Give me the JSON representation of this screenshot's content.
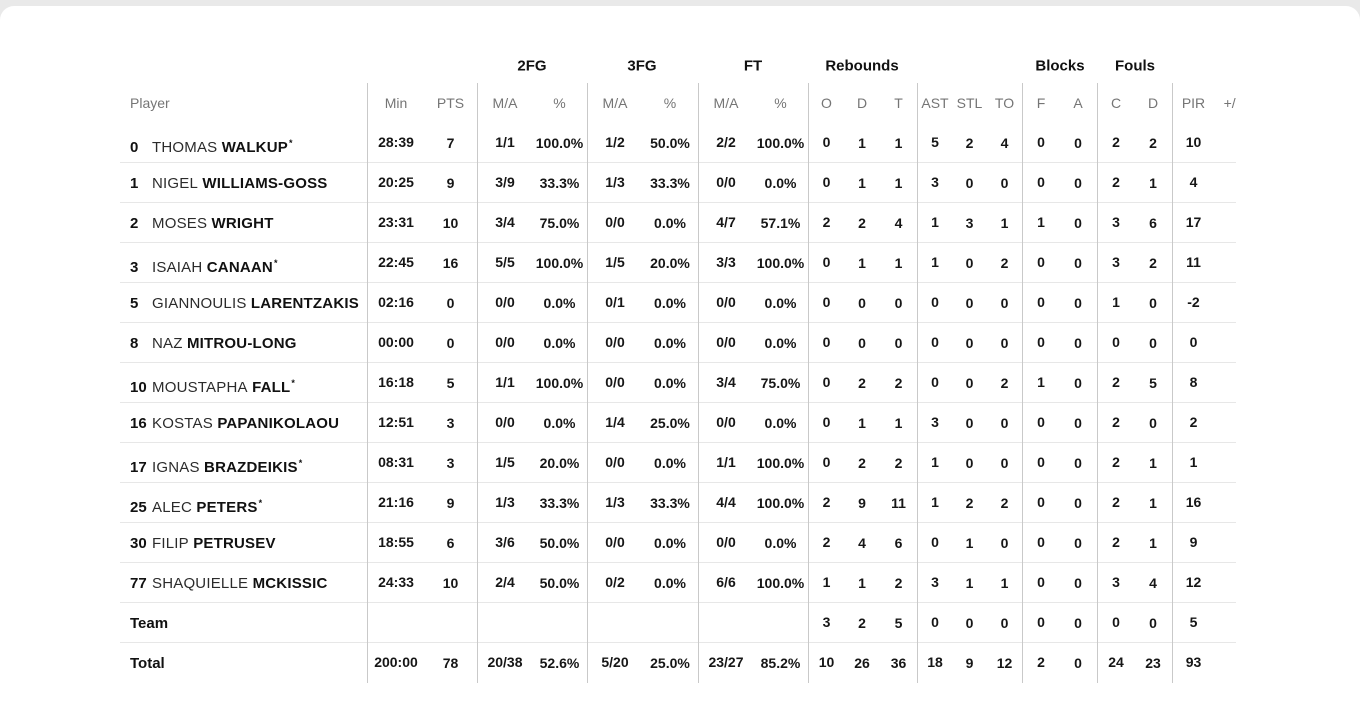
{
  "colors": {
    "page_bg": "#e9e9e9",
    "card_bg": "#ffffff",
    "header_text": "#757575",
    "text": "#161616",
    "vline": "#c9c9c9",
    "hline": "#e7e7e7"
  },
  "table": {
    "group_labels": [
      "2FG",
      "3FG",
      "FT",
      "Rebounds",
      "Blocks",
      "Fouls"
    ],
    "columns": [
      "Player",
      "Min",
      "PTS",
      "M/A",
      "%",
      "M/A",
      "%",
      "M/A",
      "%",
      "O",
      "D",
      "T",
      "AST",
      "STL",
      "TO",
      "F",
      "A",
      "C",
      "D",
      "PIR",
      "+/-"
    ],
    "starter_mark": "*",
    "rows": [
      {
        "num": "0",
        "first": "THOMAS",
        "last": "WALKUP",
        "starter": true,
        "cells": [
          "28:39",
          "7",
          "1/1",
          "100.0%",
          "1/2",
          "50.0%",
          "2/2",
          "100.0%",
          "0",
          "1",
          "1",
          "5",
          "2",
          "4",
          "0",
          "0",
          "2",
          "2",
          "10",
          ""
        ]
      },
      {
        "num": "1",
        "first": "NIGEL",
        "last": "WILLIAMS-GOSS",
        "starter": false,
        "cells": [
          "20:25",
          "9",
          "3/9",
          "33.3%",
          "1/3",
          "33.3%",
          "0/0",
          "0.0%",
          "0",
          "1",
          "1",
          "3",
          "0",
          "0",
          "0",
          "0",
          "2",
          "1",
          "4",
          ""
        ]
      },
      {
        "num": "2",
        "first": "MOSES",
        "last": "WRIGHT",
        "starter": false,
        "cells": [
          "23:31",
          "10",
          "3/4",
          "75.0%",
          "0/0",
          "0.0%",
          "4/7",
          "57.1%",
          "2",
          "2",
          "4",
          "1",
          "3",
          "1",
          "1",
          "0",
          "3",
          "6",
          "17",
          ""
        ]
      },
      {
        "num": "3",
        "first": "ISAIAH",
        "last": "CANAAN",
        "starter": true,
        "cells": [
          "22:45",
          "16",
          "5/5",
          "100.0%",
          "1/5",
          "20.0%",
          "3/3",
          "100.0%",
          "0",
          "1",
          "1",
          "1",
          "0",
          "2",
          "0",
          "0",
          "3",
          "2",
          "11",
          ""
        ]
      },
      {
        "num": "5",
        "first": "GIANNOULIS",
        "last": "LARENTZAKIS",
        "starter": false,
        "cells": [
          "02:16",
          "0",
          "0/0",
          "0.0%",
          "0/1",
          "0.0%",
          "0/0",
          "0.0%",
          "0",
          "0",
          "0",
          "0",
          "0",
          "0",
          "0",
          "0",
          "1",
          "0",
          "-2",
          ""
        ]
      },
      {
        "num": "8",
        "first": "NAZ",
        "last": "MITROU-LONG",
        "starter": false,
        "cells": [
          "00:00",
          "0",
          "0/0",
          "0.0%",
          "0/0",
          "0.0%",
          "0/0",
          "0.0%",
          "0",
          "0",
          "0",
          "0",
          "0",
          "0",
          "0",
          "0",
          "0",
          "0",
          "0",
          ""
        ]
      },
      {
        "num": "10",
        "first": "MOUSTAPHA",
        "last": "FALL",
        "starter": true,
        "cells": [
          "16:18",
          "5",
          "1/1",
          "100.0%",
          "0/0",
          "0.0%",
          "3/4",
          "75.0%",
          "0",
          "2",
          "2",
          "0",
          "0",
          "2",
          "1",
          "0",
          "2",
          "5",
          "8",
          ""
        ]
      },
      {
        "num": "16",
        "first": "KOSTAS",
        "last": "PAPANIKOLAOU",
        "starter": false,
        "cells": [
          "12:51",
          "3",
          "0/0",
          "0.0%",
          "1/4",
          "25.0%",
          "0/0",
          "0.0%",
          "0",
          "1",
          "1",
          "3",
          "0",
          "0",
          "0",
          "0",
          "2",
          "0",
          "2",
          ""
        ]
      },
      {
        "num": "17",
        "first": "IGNAS",
        "last": "BRAZDEIKIS",
        "starter": true,
        "cells": [
          "08:31",
          "3",
          "1/5",
          "20.0%",
          "0/0",
          "0.0%",
          "1/1",
          "100.0%",
          "0",
          "2",
          "2",
          "1",
          "0",
          "0",
          "0",
          "0",
          "2",
          "1",
          "1",
          ""
        ]
      },
      {
        "num": "25",
        "first": "ALEC",
        "last": "PETERS",
        "starter": true,
        "cells": [
          "21:16",
          "9",
          "1/3",
          "33.3%",
          "1/3",
          "33.3%",
          "4/4",
          "100.0%",
          "2",
          "9",
          "11",
          "1",
          "2",
          "2",
          "0",
          "0",
          "2",
          "1",
          "16",
          ""
        ]
      },
      {
        "num": "30",
        "first": "FILIP",
        "last": "PETRUSEV",
        "starter": false,
        "cells": [
          "18:55",
          "6",
          "3/6",
          "50.0%",
          "0/0",
          "0.0%",
          "0/0",
          "0.0%",
          "2",
          "4",
          "6",
          "0",
          "1",
          "0",
          "0",
          "0",
          "2",
          "1",
          "9",
          ""
        ]
      },
      {
        "num": "77",
        "first": "SHAQUIELLE",
        "last": "MCKISSIC",
        "starter": false,
        "cells": [
          "24:33",
          "10",
          "2/4",
          "50.0%",
          "0/2",
          "0.0%",
          "6/6",
          "100.0%",
          "1",
          "1",
          "2",
          "3",
          "1",
          "1",
          "0",
          "0",
          "3",
          "4",
          "12",
          ""
        ]
      },
      {
        "label": "Team",
        "cells": [
          "",
          "",
          "",
          "",
          "",
          "",
          "",
          "",
          "3",
          "2",
          "5",
          "0",
          "0",
          "0",
          "0",
          "0",
          "0",
          "0",
          "5",
          ""
        ]
      },
      {
        "label": "Total",
        "cells": [
          "200:00",
          "78",
          "20/38",
          "52.6%",
          "5/20",
          "25.0%",
          "23/27",
          "85.2%",
          "10",
          "26",
          "36",
          "18",
          "9",
          "12",
          "2",
          "0",
          "24",
          "23",
          "93",
          ""
        ]
      }
    ]
  }
}
